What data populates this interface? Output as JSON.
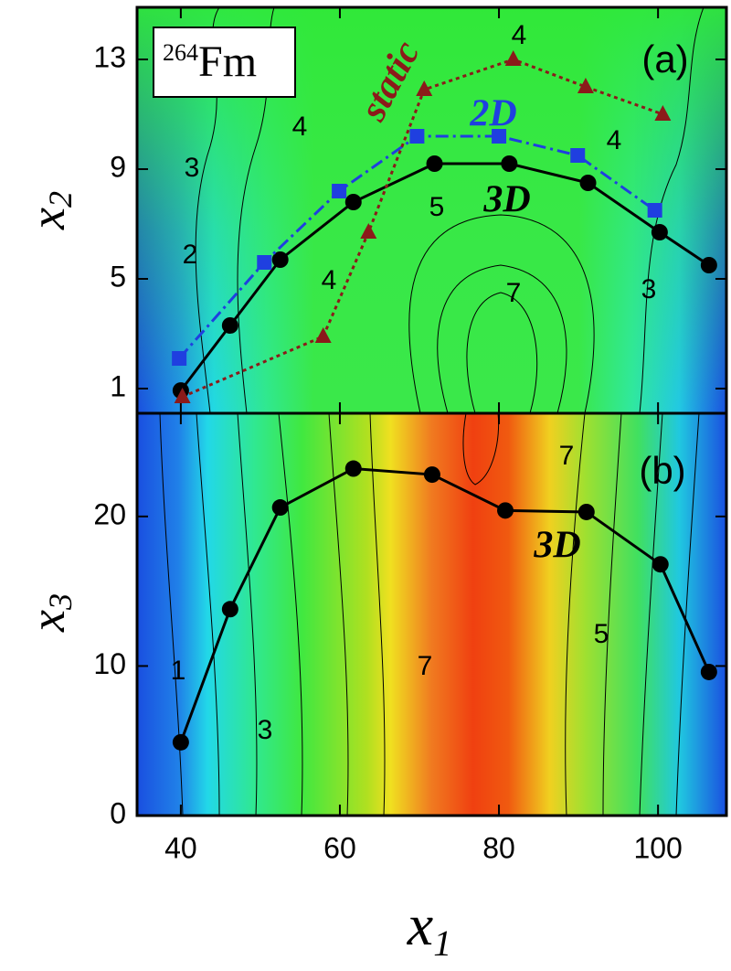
{
  "chart_data": [
    {
      "type": "line",
      "panel_label": "(a)",
      "nucleus_mass": "264",
      "nucleus_symbol": "Fm",
      "ylabel": {
        "base": "x",
        "sub": "2"
      },
      "xlim": [
        34.5,
        108.6
      ],
      "ylim": [
        0.1,
        14.9
      ],
      "yticks": [
        1,
        5,
        9,
        13
      ],
      "series": [
        {
          "name": "3D",
          "color": "#000000",
          "marker": "circle",
          "dash": "none",
          "x": [
            40,
            46.2,
            52.5,
            61.7,
            71.9,
            81.3,
            91.2,
            100.2,
            106.4
          ],
          "values": [
            0.93,
            3.3,
            5.7,
            7.8,
            9.2,
            9.2,
            8.5,
            6.7,
            5.5
          ]
        },
        {
          "name": "2D",
          "color": "#1f3fe0",
          "marker": "square",
          "dash": "14,5,3,5",
          "x": [
            39.8,
            50.5,
            59.9,
            69.7,
            80,
            89.9,
            99.6
          ],
          "values": [
            2.1,
            5.6,
            8.2,
            10.2,
            10.2,
            9.5,
            7.5
          ]
        },
        {
          "name": "static",
          "color": "#8b1a1a",
          "marker": "triangle",
          "dash": "4,4",
          "x": [
            40.2,
            57.9,
            63.6,
            70.6,
            81.8,
            90.9,
            100.6
          ],
          "values": [
            0.7,
            2.9,
            6.7,
            11.9,
            13.0,
            12.0,
            11.0
          ]
        }
      ],
      "contour_labels": [
        "4",
        "3",
        "2",
        "4",
        "5",
        "7",
        "4",
        "4",
        "3"
      ]
    },
    {
      "type": "line",
      "panel_label": "(b)",
      "xlabel": {
        "base": "x",
        "sub": "1"
      },
      "ylabel": {
        "base": "x",
        "sub": "3"
      },
      "xlim": [
        34.5,
        108.6
      ],
      "xticks": [
        40,
        60,
        80,
        100
      ],
      "ylim": [
        0,
        26.9
      ],
      "yticks": [
        0,
        10,
        20
      ],
      "series": [
        {
          "name": "3D",
          "color": "#000000",
          "marker": "circle",
          "dash": "none",
          "x": [
            40,
            46.2,
            52.5,
            61.7,
            71.6,
            80.8,
            91.0,
            100.3,
            106.4
          ],
          "values": [
            4.9,
            13.8,
            20.6,
            23.2,
            22.8,
            20.4,
            20.3,
            16.8,
            9.6
          ]
        }
      ],
      "contour_labels": [
        "7",
        "1",
        "3",
        "7",
        "5"
      ]
    }
  ]
}
